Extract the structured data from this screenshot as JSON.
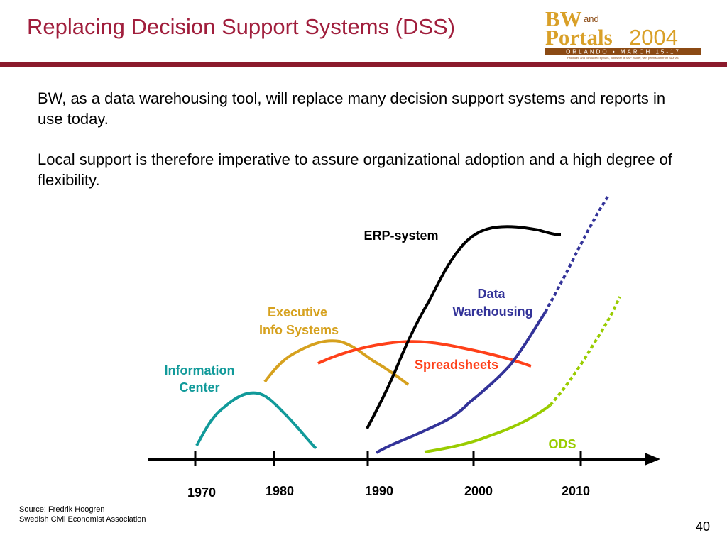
{
  "slide": {
    "title": "Replacing Decision Support Systems (DSS)",
    "paragraphs": [
      "BW, as a data warehousing tool, will replace many decision support systems and reports in use today.",
      "Local support is therefore imperative to assure organizational adoption and a high degree of flexibility."
    ],
    "source_line_1": "Source: Fredrik Hoogren",
    "source_line_2": "Swedish Civil Economist Association",
    "page_number": "40"
  },
  "logo": {
    "word_1": "BW",
    "word_and": "and",
    "word_2": "Portals",
    "year": "2004",
    "event_line": "ORLANDO • MARCH 15-17",
    "credit_line": "Produced and conducted by WIS, publisher of SAP Insider, with permission from SAP AG",
    "colors": {
      "gold": "#d9a028",
      "brown": "#8b4a14"
    }
  },
  "timeline": {
    "years": [
      "1970",
      "1980",
      "1990",
      "2000",
      "2010"
    ],
    "axis_color": "#000000"
  },
  "curves": [
    {
      "id": "information-center",
      "label_lines": [
        "Information",
        "Center"
      ],
      "color": "#119a9a"
    },
    {
      "id": "executive-info-systems",
      "label_lines": [
        "Executive",
        "Info Systems"
      ],
      "color": "#d6a11e"
    },
    {
      "id": "spreadsheets",
      "label_lines": [
        "Spreadsheets"
      ],
      "color": "#ff4019"
    },
    {
      "id": "erp-system",
      "label_lines": [
        "ERP-system"
      ],
      "color": "#000000"
    },
    {
      "id": "data-warehousing",
      "label_lines": [
        "Data",
        "Warehousing"
      ],
      "color": "#333399"
    },
    {
      "id": "ods",
      "label_lines": [
        "ODS"
      ],
      "color": "#99cc00"
    }
  ]
}
